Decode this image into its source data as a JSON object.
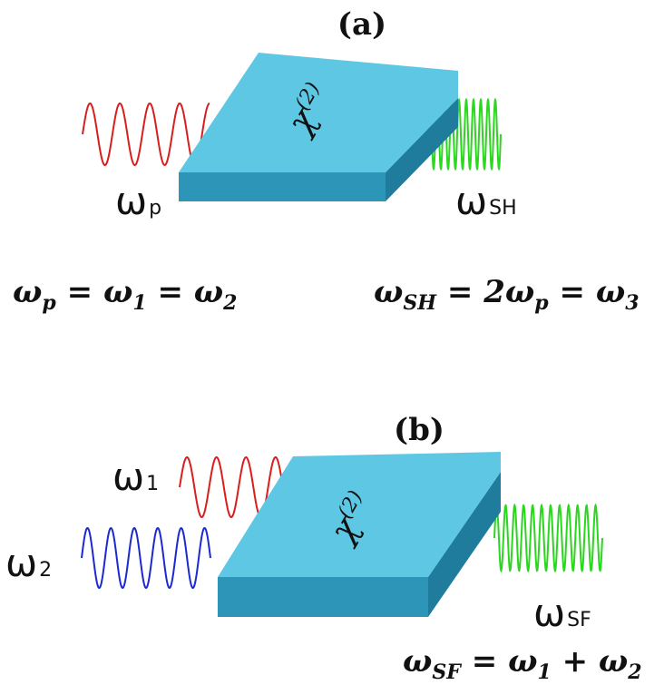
{
  "panels": {
    "a": {
      "label": "(a)",
      "crystal": {
        "symbol": "χ",
        "order": "(2)"
      },
      "input_wave": {
        "main": "ω",
        "sub": "p",
        "color": "#d81e1e"
      },
      "output_wave": {
        "main": "ω",
        "sub": "SH",
        "color": "#2bd61e"
      },
      "equation_left": {
        "parts": [
          "ω",
          "p",
          " = ",
          "ω",
          "1",
          " = ",
          "ω",
          "2"
        ]
      },
      "equation_right": {
        "parts": [
          "ω",
          "SH",
          " = 2",
          "ω",
          "p",
          " = ",
          "ω",
          "3"
        ]
      }
    },
    "b": {
      "label": "(b)",
      "crystal": {
        "symbol": "χ",
        "order": "(2)"
      },
      "input_wave_1": {
        "main": "ω",
        "sub": "1",
        "color": "#d81e1e"
      },
      "input_wave_2": {
        "main": "ω",
        "sub": "2",
        "color": "#1a2ad0"
      },
      "output_wave": {
        "main": "ω",
        "sub": "SF",
        "color": "#2bd61e"
      },
      "equation": {
        "parts": [
          "ω",
          "SF",
          " = ",
          "ω",
          "1",
          " + ",
          "ω",
          "2"
        ]
      }
    }
  },
  "colors": {
    "crystal_top": "#5ec8e4",
    "crystal_front": "#2d96b8",
    "crystal_side": "#1f7c9d"
  }
}
